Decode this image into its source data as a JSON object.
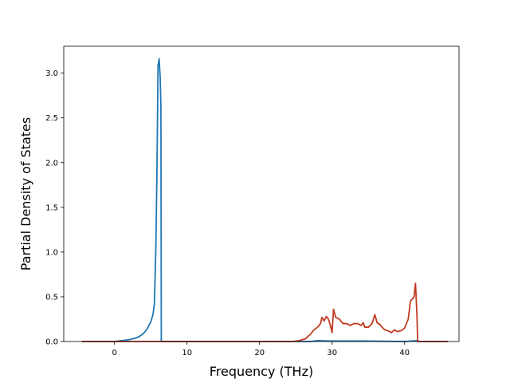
{
  "chart_data": {
    "type": "line",
    "title": "",
    "xlabel": "Frequency (THz)",
    "ylabel": "Partial Density of States",
    "xlim": [
      -7,
      47.5
    ],
    "ylim": [
      0,
      3.3
    ],
    "xticks": [
      0,
      10,
      20,
      30,
      40
    ],
    "yticks": [
      0.0,
      0.5,
      1.0,
      1.5,
      2.0,
      2.5,
      3.0
    ],
    "xtick_labels": [
      "0",
      "10",
      "20",
      "30",
      "40"
    ],
    "ytick_labels": [
      "0.0",
      "0.5",
      "1.0",
      "1.5",
      "2.0",
      "2.5",
      "3.0"
    ],
    "grid": false,
    "legend": false,
    "series": [
      {
        "color": "#1f77b4",
        "points": [
          [
            -4.5,
            0
          ],
          [
            0.0,
            0.0
          ],
          [
            1.0,
            0.01
          ],
          [
            2.0,
            0.02
          ],
          [
            3.0,
            0.04
          ],
          [
            3.5,
            0.06
          ],
          [
            4.0,
            0.09
          ],
          [
            4.5,
            0.14
          ],
          [
            5.0,
            0.22
          ],
          [
            5.3,
            0.3
          ],
          [
            5.5,
            0.42
          ],
          [
            5.7,
            1.05
          ],
          [
            5.85,
            1.9
          ],
          [
            6.0,
            3.08
          ],
          [
            6.15,
            3.16
          ],
          [
            6.3,
            2.95
          ],
          [
            6.4,
            2.6
          ],
          [
            6.45,
            0.0
          ],
          [
            10,
            0
          ],
          [
            20,
            0
          ],
          [
            27,
            0
          ],
          [
            28,
            0.01
          ],
          [
            30,
            0.005
          ],
          [
            35,
            0.005
          ],
          [
            40,
            0.0
          ],
          [
            41.8,
            0.01
          ],
          [
            42,
            0.0
          ],
          [
            46,
            0
          ]
        ]
      },
      {
        "color": "#c23b22",
        "points": [
          [
            -4.5,
            0
          ],
          [
            10,
            0
          ],
          [
            20,
            0
          ],
          [
            24.5,
            0.0
          ],
          [
            25.5,
            0.01
          ],
          [
            26.3,
            0.03
          ],
          [
            27.0,
            0.08
          ],
          [
            27.5,
            0.13
          ],
          [
            28.0,
            0.16
          ],
          [
            28.4,
            0.2
          ],
          [
            28.6,
            0.27
          ],
          [
            28.9,
            0.23
          ],
          [
            29.2,
            0.28
          ],
          [
            29.5,
            0.25
          ],
          [
            29.8,
            0.17
          ],
          [
            30.0,
            0.1
          ],
          [
            30.2,
            0.36
          ],
          [
            30.5,
            0.27
          ],
          [
            31.0,
            0.25
          ],
          [
            31.5,
            0.2
          ],
          [
            32.0,
            0.2
          ],
          [
            32.5,
            0.18
          ],
          [
            33.0,
            0.2
          ],
          [
            33.5,
            0.2
          ],
          [
            34.0,
            0.18
          ],
          [
            34.3,
            0.21
          ],
          [
            34.5,
            0.16
          ],
          [
            35.0,
            0.16
          ],
          [
            35.5,
            0.2
          ],
          [
            35.9,
            0.3
          ],
          [
            36.2,
            0.21
          ],
          [
            36.6,
            0.19
          ],
          [
            37.0,
            0.15
          ],
          [
            37.3,
            0.13
          ],
          [
            37.7,
            0.12
          ],
          [
            38.2,
            0.1
          ],
          [
            38.6,
            0.13
          ],
          [
            39.0,
            0.11
          ],
          [
            39.5,
            0.12
          ],
          [
            40.0,
            0.15
          ],
          [
            40.5,
            0.25
          ],
          [
            40.8,
            0.45
          ],
          [
            41.0,
            0.47
          ],
          [
            41.3,
            0.5
          ],
          [
            41.5,
            0.65
          ],
          [
            41.7,
            0.3
          ],
          [
            41.8,
            0.0
          ],
          [
            46.0,
            0
          ]
        ]
      }
    ]
  }
}
